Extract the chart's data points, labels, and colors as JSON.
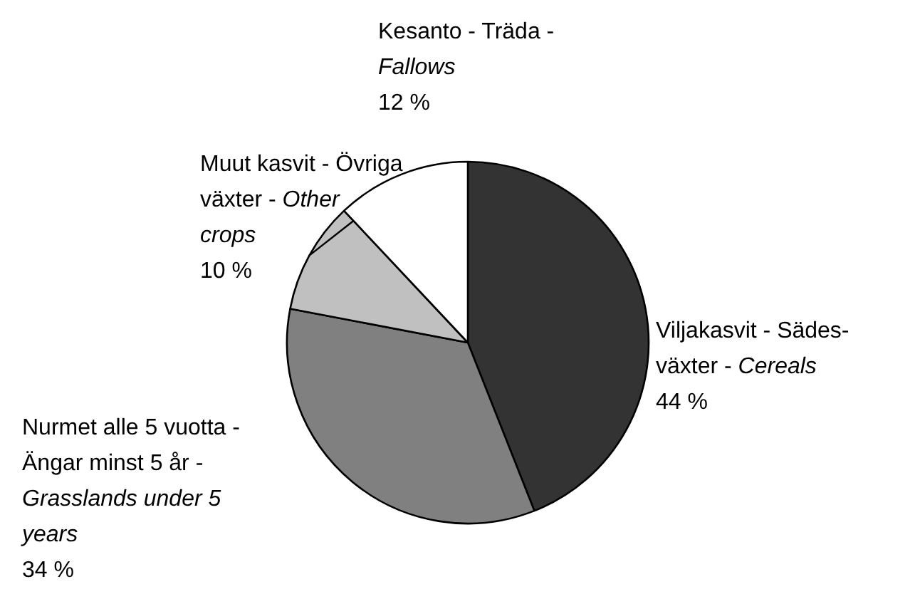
{
  "chart_data": {
    "type": "pie",
    "categories": [
      "Viljakasvit - Sädes-\nväxter - Cereals",
      "Nurmet alle 5 vuotta -\nÄngar minst 5 år -\nGrasslands under 5\nyears",
      "Muut kasvit - Övriga\nväxter - Other\ncrops",
      "Kesanto - Träda -\nFallows"
    ],
    "values": [
      44,
      34,
      10,
      12
    ],
    "colors": [
      "#333333",
      "#808080",
      "#c0c0c0",
      "#ffffff"
    ],
    "value_labels": [
      "44 %",
      "34 %",
      "10 %",
      "12 %"
    ]
  }
}
